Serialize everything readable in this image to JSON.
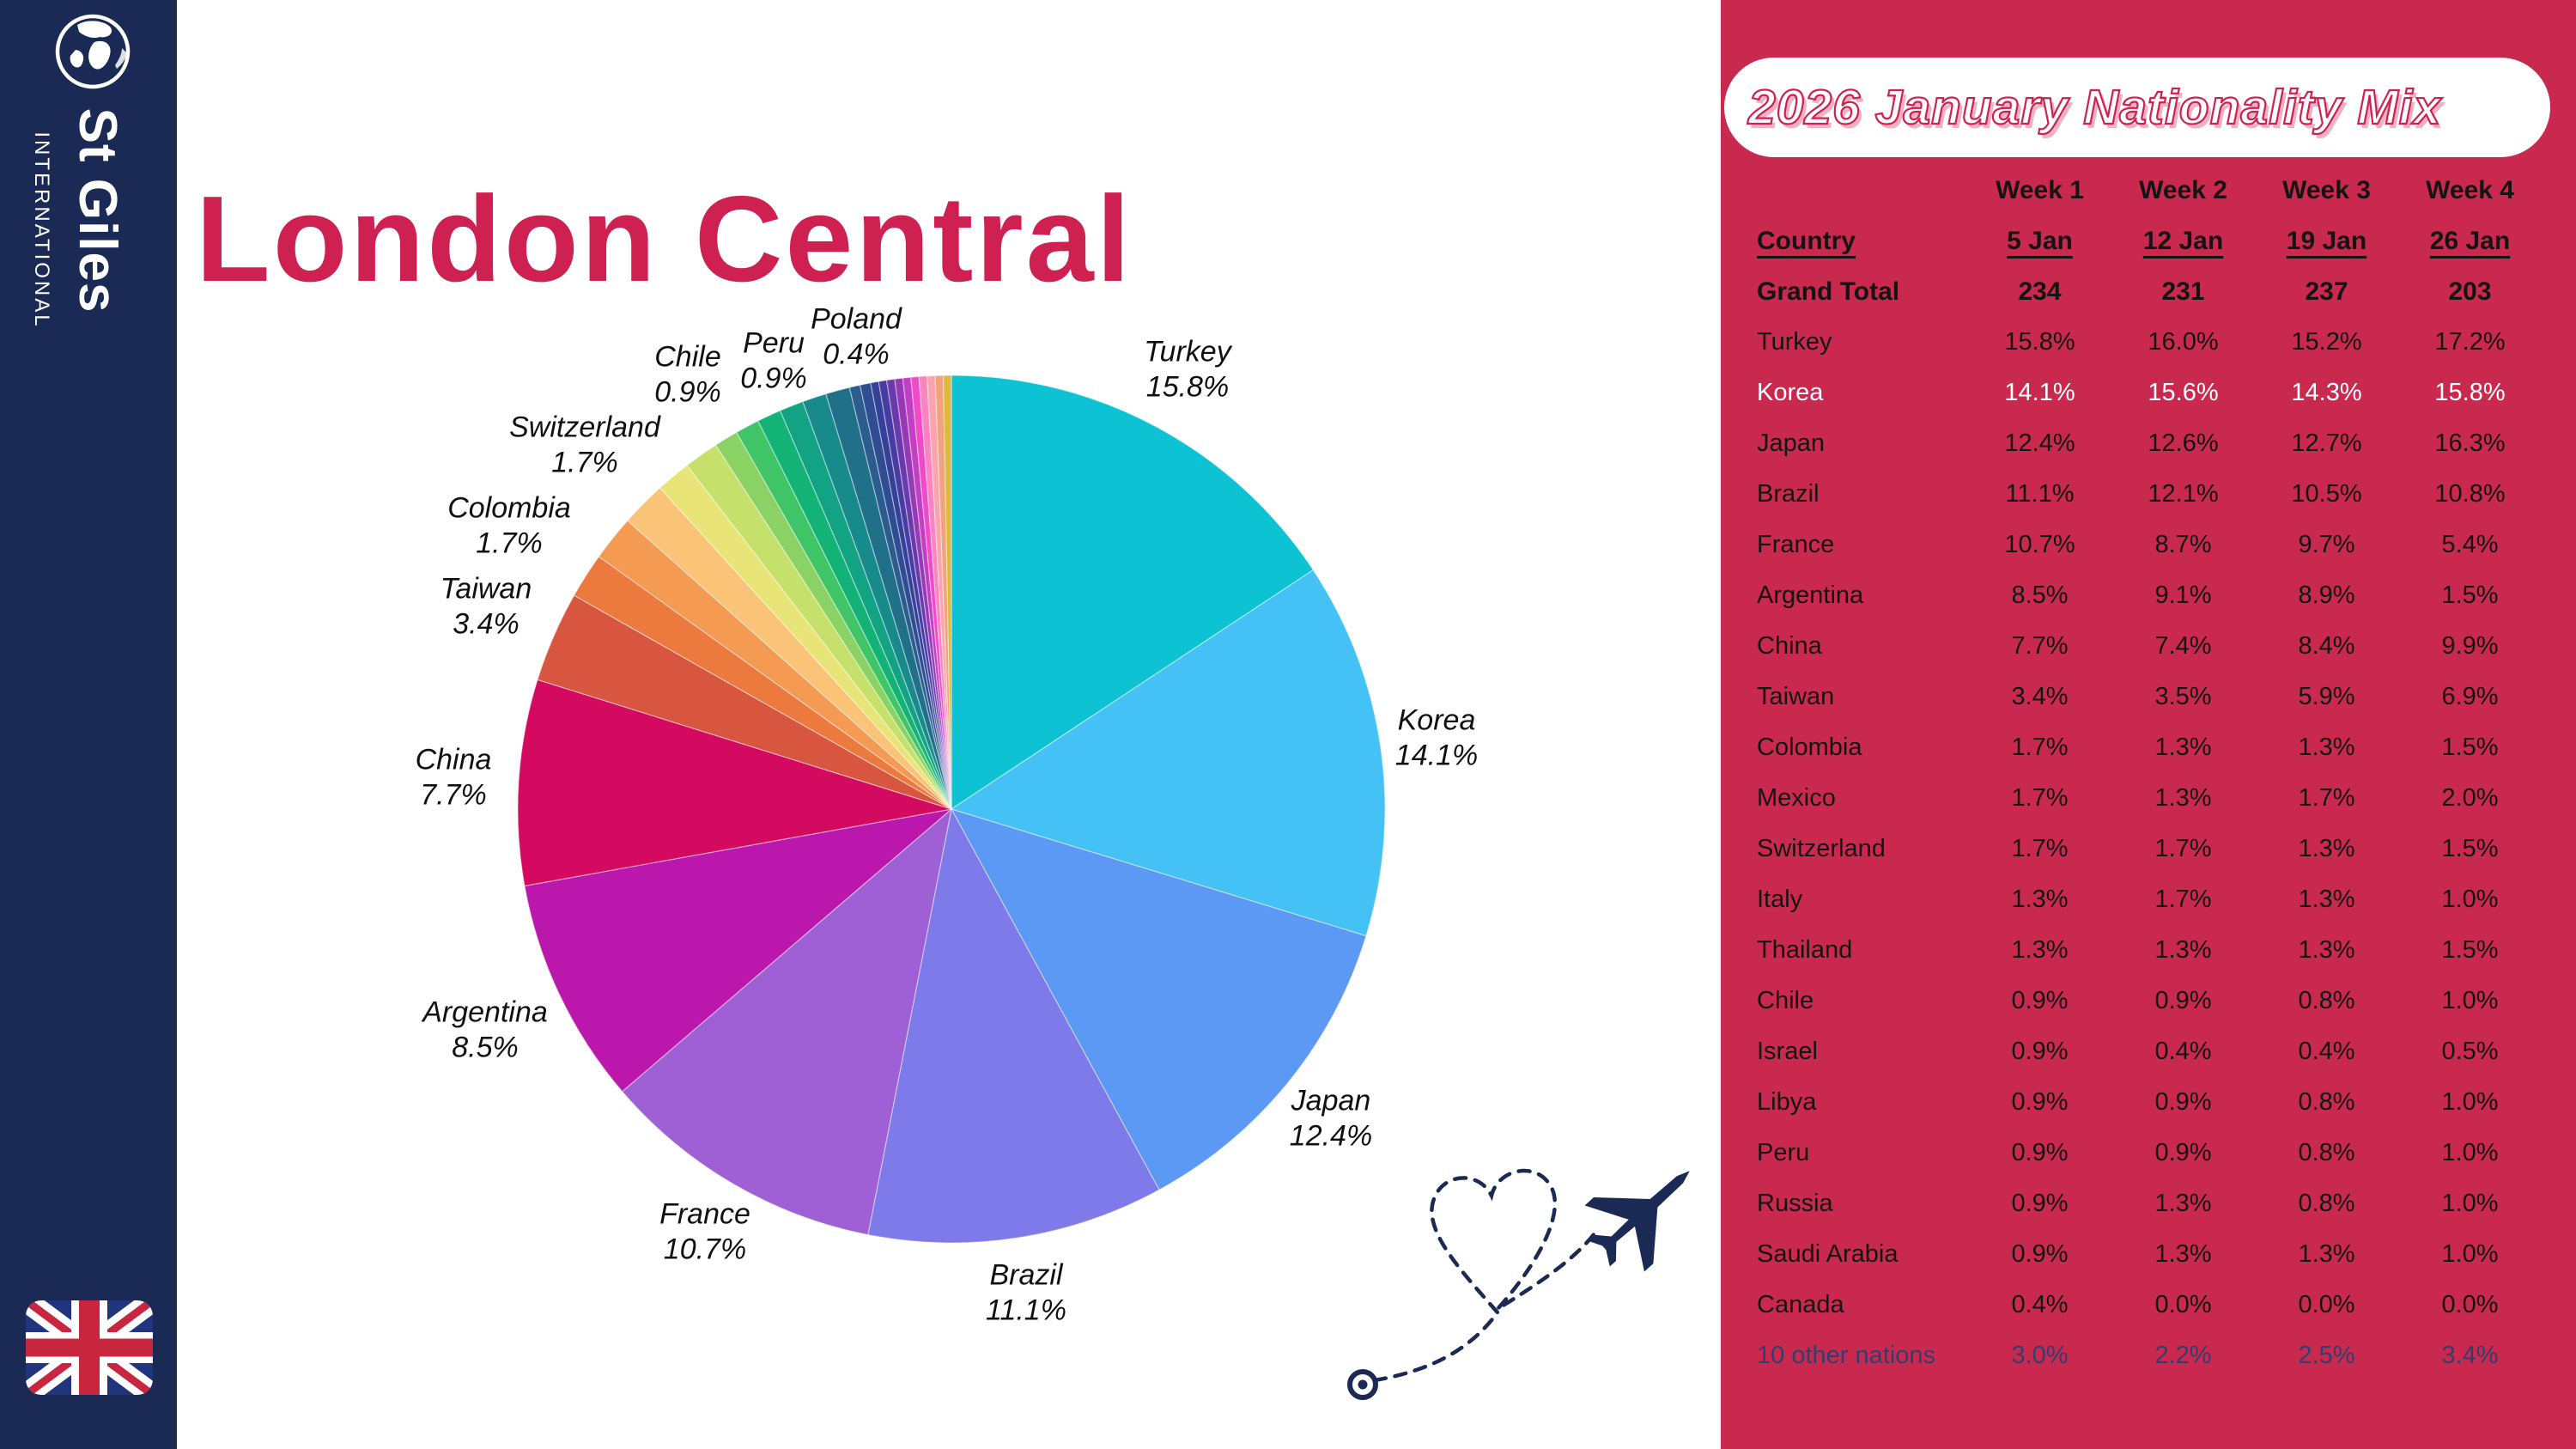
{
  "title": "London Central",
  "title_color": "#CE2151",
  "sidebar": {
    "bg": "#1B2A55",
    "logo_main": "St Giles",
    "logo_sub": "INTERNATIONAL",
    "icons": [
      "globe-icon",
      "uk-flag-icon"
    ]
  },
  "decor": {
    "plane_icon": "plane-icon",
    "flight_path": "dashed-heart-trail",
    "plane_color": "#1B2A55"
  },
  "panel": {
    "bg": "#C9294E",
    "heading": "2026 January Nationality Mix",
    "table": {
      "header_row": {
        "label": "",
        "values": [
          "Week 1",
          "Week 2",
          "Week 3",
          "Week 4"
        ]
      },
      "subheader_row": {
        "label": "Country",
        "values": [
          "5 Jan",
          "12 Jan",
          "19 Jan",
          "26 Jan"
        ]
      },
      "total_row": {
        "label": "Grand Total",
        "values": [
          "234",
          "231",
          "237",
          "203"
        ]
      },
      "rows": [
        {
          "label": "Turkey",
          "values": [
            "15.8%",
            "16.0%",
            "15.2%",
            "17.2%"
          ],
          "variant": "default"
        },
        {
          "label": "Korea",
          "values": [
            "14.1%",
            "15.6%",
            "14.3%",
            "15.8%"
          ],
          "variant": "highlight"
        },
        {
          "label": "Japan",
          "values": [
            "12.4%",
            "12.6%",
            "12.7%",
            "16.3%"
          ],
          "variant": "default"
        },
        {
          "label": "Brazil",
          "values": [
            "11.1%",
            "12.1%",
            "10.5%",
            "10.8%"
          ],
          "variant": "default"
        },
        {
          "label": "France",
          "values": [
            "10.7%",
            "8.7%",
            "9.7%",
            "5.4%"
          ],
          "variant": "default"
        },
        {
          "label": "Argentina",
          "values": [
            "8.5%",
            "9.1%",
            "8.9%",
            "1.5%"
          ],
          "variant": "default"
        },
        {
          "label": "China",
          "values": [
            "7.7%",
            "7.4%",
            "8.4%",
            "9.9%"
          ],
          "variant": "default"
        },
        {
          "label": "Taiwan",
          "values": [
            "3.4%",
            "3.5%",
            "5.9%",
            "6.9%"
          ],
          "variant": "default"
        },
        {
          "label": "Colombia",
          "values": [
            "1.7%",
            "1.3%",
            "1.3%",
            "1.5%"
          ],
          "variant": "default"
        },
        {
          "label": "Mexico",
          "values": [
            "1.7%",
            "1.3%",
            "1.7%",
            "2.0%"
          ],
          "variant": "default"
        },
        {
          "label": "Switzerland",
          "values": [
            "1.7%",
            "1.7%",
            "1.3%",
            "1.5%"
          ],
          "variant": "default"
        },
        {
          "label": "Italy",
          "values": [
            "1.3%",
            "1.7%",
            "1.3%",
            "1.0%"
          ],
          "variant": "default"
        },
        {
          "label": "Thailand",
          "values": [
            "1.3%",
            "1.3%",
            "1.3%",
            "1.5%"
          ],
          "variant": "default"
        },
        {
          "label": "Chile",
          "values": [
            "0.9%",
            "0.9%",
            "0.8%",
            "1.0%"
          ],
          "variant": "default"
        },
        {
          "label": "Israel",
          "values": [
            "0.9%",
            "0.4%",
            "0.4%",
            "0.5%"
          ],
          "variant": "default"
        },
        {
          "label": "Libya",
          "values": [
            "0.9%",
            "0.9%",
            "0.8%",
            "1.0%"
          ],
          "variant": "default"
        },
        {
          "label": "Peru",
          "values": [
            "0.9%",
            "0.9%",
            "0.8%",
            "1.0%"
          ],
          "variant": "default"
        },
        {
          "label": "Russia",
          "values": [
            "0.9%",
            "1.3%",
            "0.8%",
            "1.0%"
          ],
          "variant": "default"
        },
        {
          "label": "Saudi Arabia",
          "values": [
            "0.9%",
            "1.3%",
            "1.3%",
            "1.0%"
          ],
          "variant": "default"
        },
        {
          "label": "Canada",
          "values": [
            "0.4%",
            "0.0%",
            "0.0%",
            "0.0%"
          ],
          "variant": "default"
        },
        {
          "label": "10 other nations",
          "values": [
            "3.0%",
            "2.2%",
            "2.5%",
            "3.4%"
          ],
          "variant": "accent"
        }
      ]
    }
  },
  "chart_data": {
    "type": "pie",
    "title": "London Central nationality mix (Week 1, 5 Jan)",
    "start_angle_deg": 0,
    "direction": "clockwise",
    "center": [
      1108,
      942
    ],
    "radius": 505,
    "slice_stroke": "rgba(255,255,255,0.45)",
    "slices": [
      {
        "label": "Turkey",
        "value": 15.8,
        "color": "#0DC2D2",
        "label_d": 1.15
      },
      {
        "label": "Korea",
        "value": 14.1,
        "color": "#45C2F5",
        "label_d": 1.13
      },
      {
        "label": "Japan",
        "value": 12.4,
        "color": "#5C99F4",
        "label_d": 1.13
      },
      {
        "label": "Brazil",
        "value": 11.1,
        "color": "#7F7AE9",
        "label_d": 1.13
      },
      {
        "label": "France",
        "value": 10.7,
        "color": "#9E60D4",
        "label_d": 1.13
      },
      {
        "label": "Argentina",
        "value": 8.5,
        "color": "#BC17AC",
        "label_d": 1.19
      },
      {
        "label": "China",
        "value": 7.7,
        "color": "#D40A60",
        "label_d": 1.15
      },
      {
        "label": "Taiwan",
        "value": 3.4,
        "color": "#D8563F",
        "label_d": 1.17
      },
      {
        "label": "Colombia",
        "value": 1.7,
        "color": "#EC7A3F",
        "label_d": 1.21
      },
      {
        "label": "Mexico",
        "value": 1.7,
        "color": "#F59A52"
      },
      {
        "label": "Switzerland",
        "value": 1.7,
        "color": "#FAC378",
        "label_d": 1.19
      },
      {
        "label": "Italy",
        "value": 1.3,
        "color": "#E9E478"
      },
      {
        "label": "Thailand",
        "value": 1.3,
        "color": "#C6E06C"
      },
      {
        "label": "Chile",
        "value": 0.9,
        "color": "#8BD264",
        "label_d": 1.17
      },
      {
        "label": "Israel",
        "value": 0.9,
        "color": "#3FC468"
      },
      {
        "label": "Libya",
        "value": 0.9,
        "color": "#13B377"
      },
      {
        "label": "Peru",
        "value": 0.9,
        "color": "#12A284",
        "label_d": 1.11
      },
      {
        "label": "Russia",
        "value": 0.9,
        "color": "#178A8B"
      },
      {
        "label": "Saudi Arabia",
        "value": 0.9,
        "color": "#20708A"
      },
      {
        "label": "Canada",
        "value": 0.4,
        "color": "#2A5C8E"
      },
      {
        "label": "Poland",
        "value": 0.4,
        "color": "#2F4D92",
        "label_d": 1.11
      },
      {
        "label": "Other",
        "value": 0.3,
        "color": "#35409A"
      },
      {
        "label": "Other",
        "value": 0.3,
        "color": "#473CA4"
      },
      {
        "label": "Other",
        "value": 0.3,
        "color": "#6B39AE"
      },
      {
        "label": "Other",
        "value": 0.3,
        "color": "#9539B5"
      },
      {
        "label": "Other",
        "value": 0.3,
        "color": "#C23FC3"
      },
      {
        "label": "Other",
        "value": 0.3,
        "color": "#F04AC9"
      },
      {
        "label": "Other",
        "value": 0.3,
        "color": "#FB84C0"
      },
      {
        "label": "Other",
        "value": 0.3,
        "color": "#FBA4AE"
      },
      {
        "label": "Other",
        "value": 0.3,
        "color": "#F0A37C"
      },
      {
        "label": "Other",
        "value": 0.3,
        "color": "#E2B73E"
      }
    ]
  }
}
